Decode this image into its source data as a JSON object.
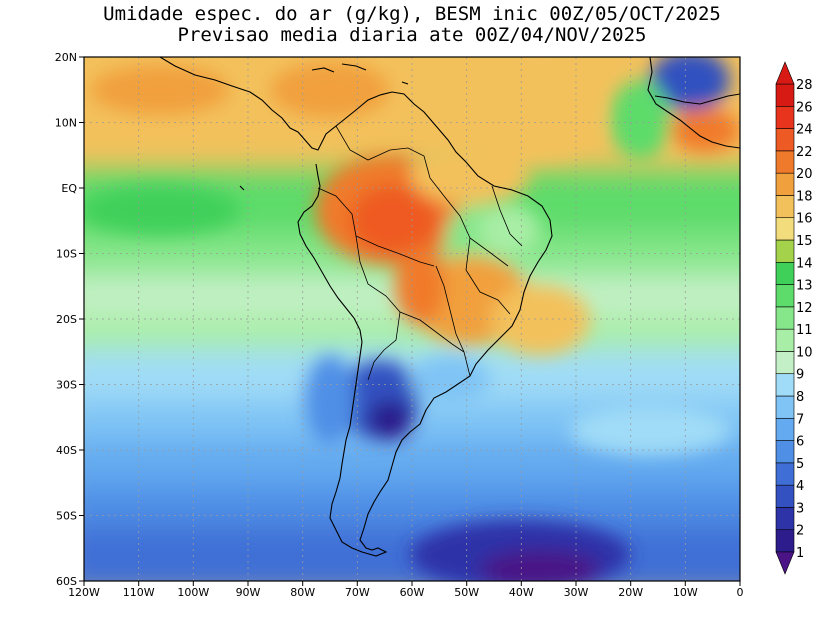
{
  "title_line1": "Umidade espec. do ar (g/kg), BESM inic 00Z/05/OCT/2025",
  "title_line2": "Previsao media diaria ate 00Z/04/NOV/2025",
  "map": {
    "lon_range": [
      -120,
      0
    ],
    "lat_range": [
      -60,
      20
    ],
    "x_ticks": [
      "120W",
      "110W",
      "100W",
      "90W",
      "80W",
      "70W",
      "60W",
      "50W",
      "40W",
      "30W",
      "20W",
      "10W",
      "0"
    ],
    "y_ticks": [
      "20N",
      "10N",
      "EQ",
      "10S",
      "20S",
      "30S",
      "40S",
      "50S",
      "60S"
    ],
    "grid": "dotted"
  },
  "colorbar": {
    "levels": [
      "1",
      "2",
      "3",
      "4",
      "5",
      "6",
      "7",
      "8",
      "9",
      "10",
      "11",
      "12",
      "13",
      "14",
      "15",
      "16",
      "18",
      "20",
      "22",
      "24",
      "26",
      "28"
    ],
    "colors": [
      "#4a1486",
      "#2c1c8c",
      "#2f33a8",
      "#3351c0",
      "#3f6fd6",
      "#4f8fe6",
      "#63aaf0",
      "#7fc4f5",
      "#a0dcf7",
      "#c3f0c6",
      "#a9eea6",
      "#86e68a",
      "#5ddc6b",
      "#3fd05a",
      "#a4d24a",
      "#f2dc7c",
      "#f3c15c",
      "#f1a03e",
      "#f07a2c",
      "#ee5a24",
      "#e8341c",
      "#d81a14"
    ]
  }
}
